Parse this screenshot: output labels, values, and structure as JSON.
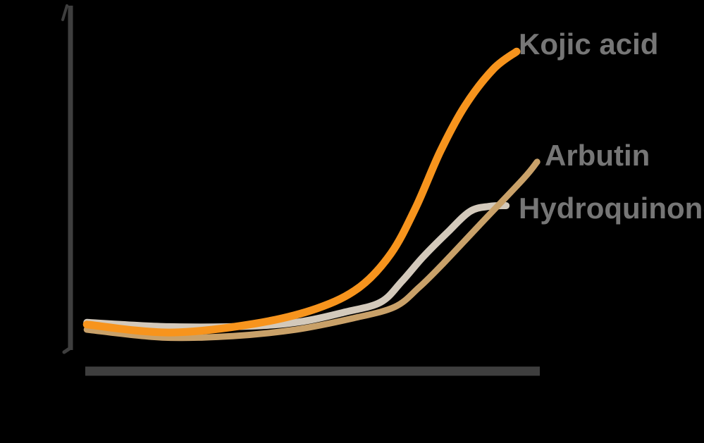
{
  "page": {
    "background": "#000000"
  },
  "chart": {
    "axis_color": "#3E3E3E",
    "label_color": "#767676"
  },
  "chart_data": {
    "type": "line",
    "title": "",
    "xlabel": "",
    "ylabel": "",
    "x_range": [
      0,
      100
    ],
    "y_range": [
      0,
      100
    ],
    "grid": false,
    "axis_ticks": "none",
    "legend": "inline-end-of-line-labels",
    "series": [
      {
        "name": "Kojic acid",
        "color": "#F7941D",
        "stroke_width": 11,
        "points": [
          [
            0.5,
            11.6
          ],
          [
            18.5,
            9.4
          ],
          [
            37.0,
            11.8
          ],
          [
            50.9,
            16.1
          ],
          [
            60.2,
            22.0
          ],
          [
            67.1,
            31.4
          ],
          [
            72.5,
            44.1
          ],
          [
            77.9,
            59.8
          ],
          [
            83.3,
            72.5
          ],
          [
            89.5,
            82.7
          ],
          [
            94.6,
            87.6
          ]
        ]
      },
      {
        "name": "Arbutin",
        "color": "#C9A169",
        "stroke_width": 9,
        "points": [
          [
            0.5,
            10.2
          ],
          [
            17.0,
            8.0
          ],
          [
            32.4,
            8.4
          ],
          [
            46.3,
            10.2
          ],
          [
            58.6,
            13.3
          ],
          [
            67.9,
            16.5
          ],
          [
            73.3,
            22.0
          ],
          [
            78.4,
            28.4
          ],
          [
            86.4,
            39.2
          ],
          [
            96.1,
            52.2
          ],
          [
            99.1,
            56.9
          ]
        ]
      },
      {
        "name": "Hydroquinone",
        "color": "#D3C9BB",
        "stroke_width": 10,
        "points": [
          [
            0.5,
            12.2
          ],
          [
            18.5,
            11.0
          ],
          [
            37.0,
            11.2
          ],
          [
            47.8,
            12.5
          ],
          [
            57.1,
            15.1
          ],
          [
            64.8,
            17.8
          ],
          [
            69.4,
            23.5
          ],
          [
            74.1,
            30.4
          ],
          [
            79.5,
            37.3
          ],
          [
            84.4,
            43.1
          ],
          [
            88.6,
            44.5
          ],
          [
            92.3,
            44.7
          ]
        ]
      }
    ]
  }
}
